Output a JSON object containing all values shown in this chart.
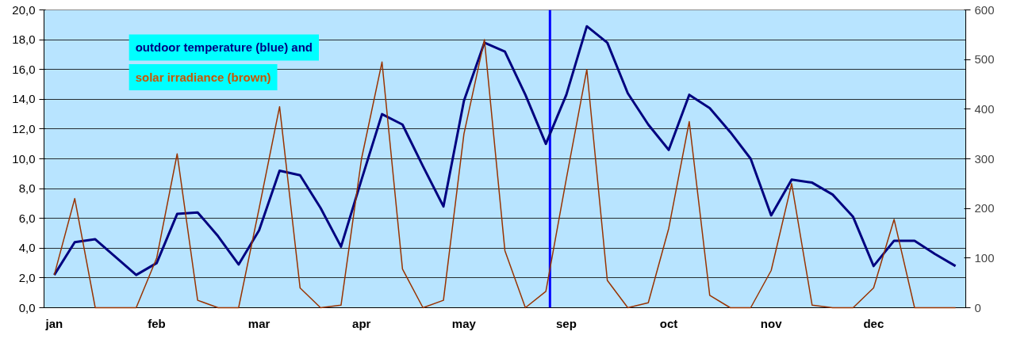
{
  "chart_data": {
    "type": "line",
    "annotations": [
      "outdoor temperature (blue) and",
      "solar irradiance (brown)"
    ],
    "categories": [
      "jan",
      null,
      null,
      null,
      null,
      "feb",
      null,
      null,
      null,
      null,
      "mar",
      null,
      null,
      null,
      null,
      "apr",
      null,
      null,
      null,
      null,
      "may",
      null,
      null,
      null,
      null,
      "sep",
      null,
      null,
      null,
      null,
      "oct",
      null,
      null,
      null,
      null,
      "nov",
      null,
      null,
      null,
      null,
      "dec",
      null,
      null,
      null,
      null
    ],
    "ylim": [
      0,
      20
    ],
    "yticks": [
      {
        "value": 0,
        "label": "0,0"
      },
      {
        "value": 2,
        "label": "2,0"
      },
      {
        "value": 4,
        "label": "4,0"
      },
      {
        "value": 6,
        "label": "6,0"
      },
      {
        "value": 8,
        "label": "8,0"
      },
      {
        "value": 10,
        "label": "10,0"
      },
      {
        "value": 12,
        "label": "12,0"
      },
      {
        "value": 14,
        "label": "14,0"
      },
      {
        "value": 16,
        "label": "16,0"
      },
      {
        "value": 18,
        "label": "18,0"
      },
      {
        "value": 20,
        "label": "20,0"
      }
    ],
    "y2lim": [
      0,
      600
    ],
    "y2ticks": [
      0,
      100,
      200,
      300,
      400,
      500,
      600
    ],
    "series": [
      {
        "color": "#000080",
        "values": [
          2.2,
          4.4,
          4.6,
          3.4,
          2.2,
          3.0,
          6.3,
          6.4,
          4.8,
          2.9,
          5.2,
          9.2,
          8.9,
          6.7,
          4.1,
          8.6,
          13.0,
          12.3,
          9.5,
          6.8,
          13.9,
          17.8,
          17.2,
          14.3,
          11.0,
          14.3,
          18.9,
          17.8,
          14.4,
          12.3,
          10.6,
          14.3,
          13.4,
          11.8,
          10.0,
          6.2,
          8.6,
          8.4,
          7.6,
          6.1,
          2.8,
          4.5,
          4.5,
          3.6,
          2.8
        ]
      },
      {
        "color": "#993300",
        "axis": "y2",
        "values": [
          66,
          220,
          0,
          0,
          0,
          100,
          310,
          15,
          0,
          0,
          200,
          405,
          40,
          0,
          5,
          300,
          495,
          78,
          0,
          15,
          350,
          540,
          115,
          0,
          33,
          260,
          480,
          55,
          0,
          10,
          160,
          375,
          25,
          0,
          0,
          75,
          250,
          5,
          0,
          0,
          40,
          178,
          0,
          0,
          0
        ]
      }
    ],
    "grid": "y",
    "marker": "none",
    "line_style": "solid"
  }
}
